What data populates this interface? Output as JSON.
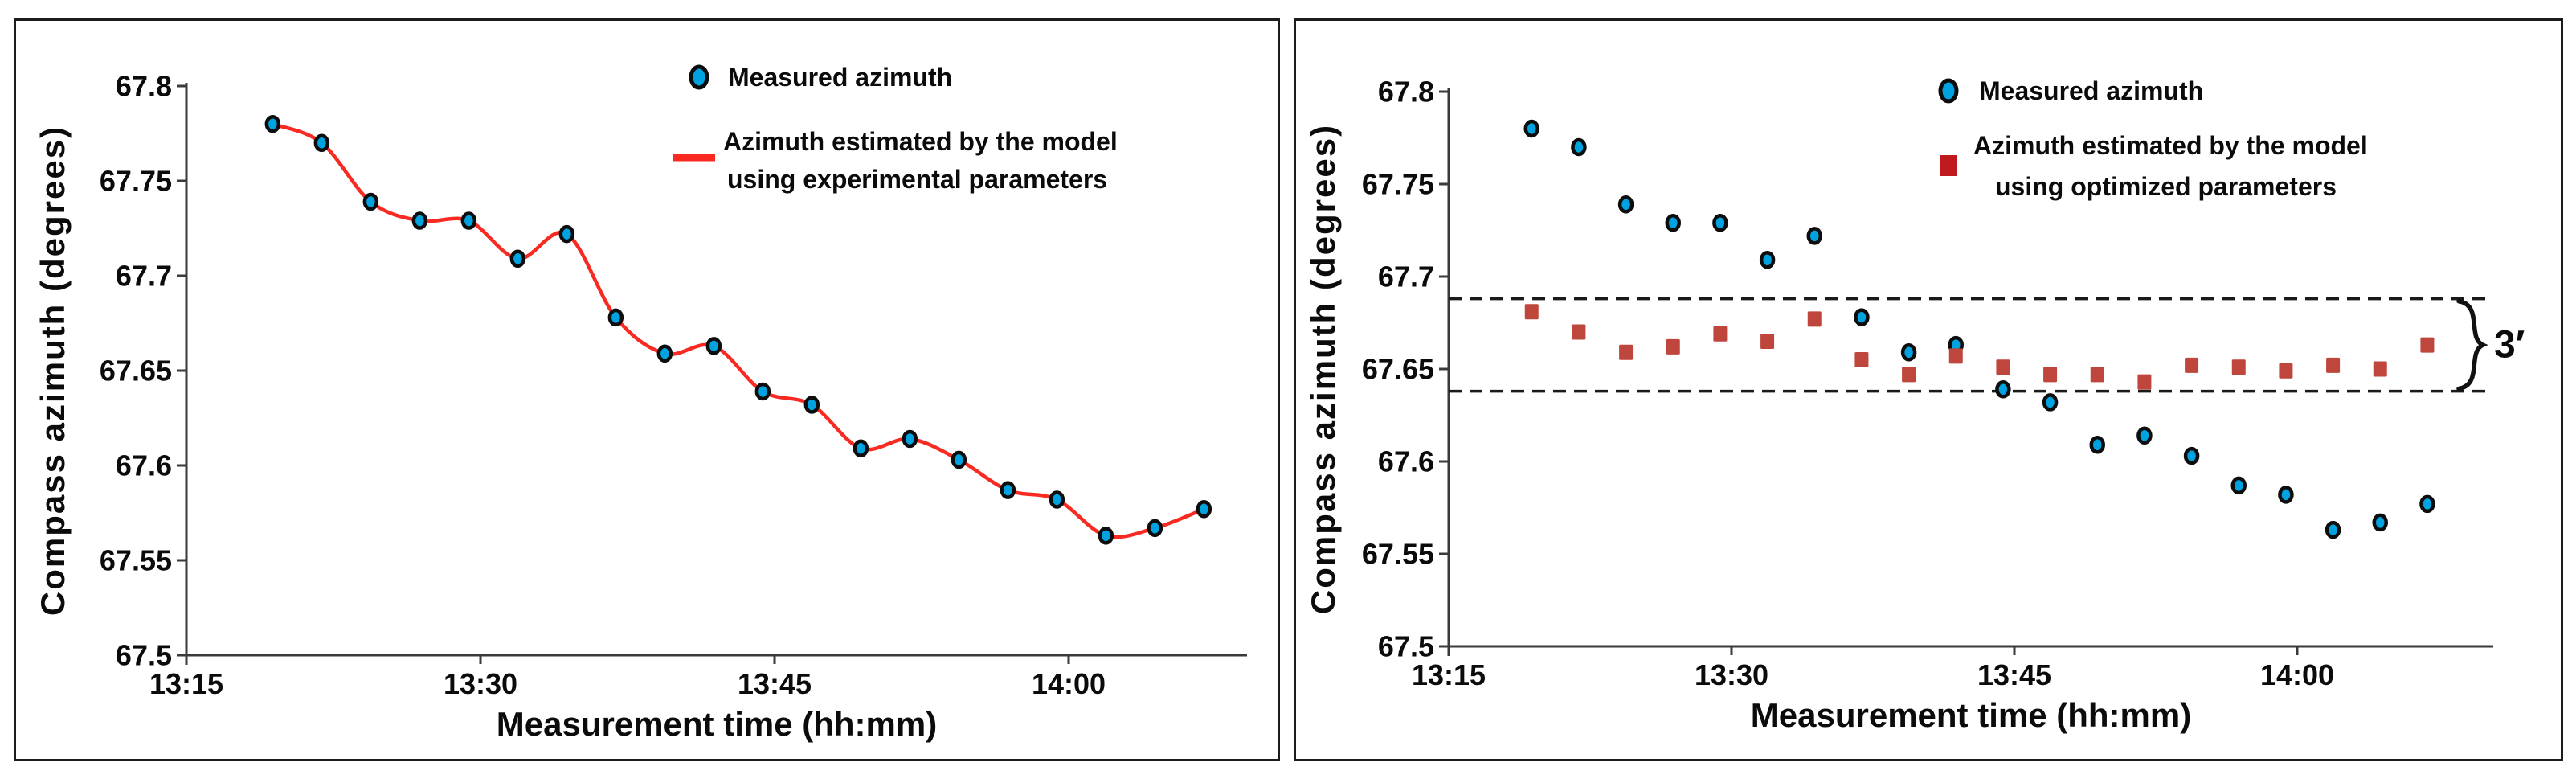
{
  "colors": {
    "background": "#ffffff",
    "panel_border": "#1c1c1c",
    "axis": "#3a3a3a",
    "text": "#0b0b0b",
    "measured_marker_fill": "#00a3e0",
    "marker_outline": "#0d0d0d",
    "model_line_red": "#f92a22",
    "optimized_marker_fill": "#bf463d",
    "legend_optimized_square": "#c0181f",
    "dashed_line": "#1a1a1a"
  },
  "chart_data": [
    {
      "id": "experimental",
      "type": "scatter",
      "title": "",
      "xlabel": "Measurement time (hh:mm)",
      "ylabel": "Compass azimuth (degrees)",
      "x_tick_labels": [
        "13:15",
        "13:30",
        "13:45",
        "14:00"
      ],
      "x_tick_minutes": [
        0,
        15,
        30,
        45
      ],
      "y_tick_labels": [
        "67.8",
        "67.75",
        "67.7",
        "67.65",
        "67.6",
        "67.55",
        "67.5"
      ],
      "ylim": [
        67.5,
        67.8
      ],
      "xlim_minutes_after_13_15": [
        0,
        54
      ],
      "grid": false,
      "legend_position": "top-right",
      "x_minutes_after_13_15": [
        4.4,
        6.9,
        9.4,
        11.9,
        14.4,
        16.9,
        19.4,
        21.9,
        24.4,
        26.9,
        29.4,
        31.9,
        34.4,
        36.9,
        39.4,
        41.9,
        44.4,
        46.9,
        49.4,
        51.9
      ],
      "series": [
        {
          "name": "Measured azimuth",
          "render": "scatter-circle",
          "color": "#00a3e0",
          "values": [
            67.78,
            67.77,
            67.739,
            67.729,
            67.729,
            67.709,
            67.722,
            67.678,
            67.659,
            67.663,
            67.639,
            67.632,
            67.609,
            67.614,
            67.603,
            67.587,
            67.582,
            67.563,
            67.567,
            67.577
          ]
        },
        {
          "name": "Azimuth estimated by the model using experimental parameters",
          "render": "line",
          "color": "#f92a22",
          "values": [
            67.78,
            67.77,
            67.739,
            67.729,
            67.729,
            67.709,
            67.722,
            67.678,
            67.659,
            67.663,
            67.639,
            67.632,
            67.609,
            67.614,
            67.603,
            67.587,
            67.582,
            67.563,
            67.567,
            67.577
          ]
        }
      ],
      "legend": {
        "marker2_color": "#f92a22",
        "entries": [
          {
            "marker": "circle",
            "label_lines": [
              "Measured azimuth"
            ]
          },
          {
            "marker": "line",
            "label_lines": [
              "Azimuth estimated by the model",
              "using experimental parameters"
            ]
          }
        ]
      }
    },
    {
      "id": "optimized",
      "type": "scatter",
      "title": "",
      "xlabel": "Measurement time (hh:mm)",
      "ylabel": "Compass azimuth (degrees)",
      "x_tick_labels": [
        "13:15",
        "13:30",
        "13:45",
        "14:00"
      ],
      "x_tick_minutes": [
        0,
        15,
        30,
        45
      ],
      "y_tick_labels": [
        "67.8",
        "67.75",
        "67.7",
        "67.65",
        "67.6",
        "67.55",
        "67.5"
      ],
      "ylim": [
        67.5,
        67.8
      ],
      "xlim_minutes_after_13_15": [
        0,
        54
      ],
      "grid": false,
      "legend_position": "top-right",
      "x_minutes_after_13_15": [
        4.4,
        6.9,
        9.4,
        11.9,
        14.4,
        16.9,
        19.4,
        21.9,
        24.4,
        26.9,
        29.4,
        31.9,
        34.4,
        36.9,
        39.4,
        41.9,
        44.4,
        46.9,
        49.4,
        51.9
      ],
      "series": [
        {
          "name": "Measured azimuth",
          "render": "scatter-circle",
          "color": "#00a3e0",
          "values": [
            67.78,
            67.77,
            67.739,
            67.729,
            67.729,
            67.709,
            67.722,
            67.678,
            67.659,
            67.663,
            67.639,
            67.632,
            67.609,
            67.614,
            67.603,
            67.587,
            67.582,
            67.563,
            67.567,
            67.577
          ]
        },
        {
          "name": "Azimuth estimated by the model using optimized parameters",
          "render": "scatter-square",
          "color": "#bf463d",
          "values": [
            67.681,
            67.67,
            67.659,
            67.662,
            67.669,
            67.665,
            67.677,
            67.655,
            67.647,
            67.657,
            67.651,
            67.647,
            67.647,
            67.643,
            67.652,
            67.651,
            67.649,
            67.652,
            67.65,
            67.663
          ]
        }
      ],
      "legend": {
        "marker2_color": "#c0181f",
        "entries": [
          {
            "marker": "circle",
            "label_lines": [
              "Measured azimuth"
            ]
          },
          {
            "marker": "square",
            "label_lines": [
              "Azimuth estimated by the model",
              "using optimized parameters"
            ]
          }
        ]
      },
      "annotations": {
        "dashed_lines_y": [
          67.688,
          67.638
        ],
        "brace_label": "3′",
        "brace_span_degrees": 0.05
      }
    }
  ]
}
